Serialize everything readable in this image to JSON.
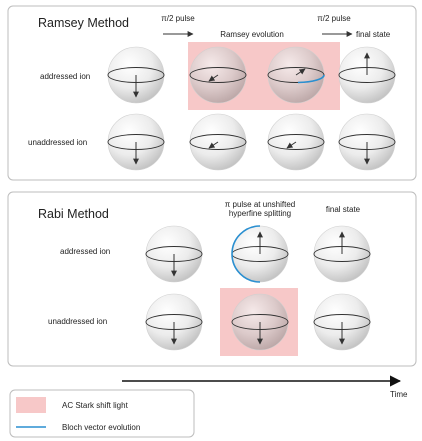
{
  "ramsey": {
    "title": "Ramsey Method",
    "step1_label": "π/2 pulse",
    "evolution_label": "Ramsey evolution",
    "step2_label": "π/2 pulse",
    "final_label": "final state",
    "row_addressed": "addressed ion",
    "row_unaddressed": "unaddressed ion"
  },
  "rabi": {
    "title": "Rabi Method",
    "pulse_label_line1": "π pulse at unshifted",
    "pulse_label_line2": "hyperfine splitting",
    "final_label": "final state",
    "row_addressed": "addressed ion",
    "row_unaddressed": "unaddressed ion"
  },
  "time_label": "Time",
  "legend": {
    "stark_label": "AC Stark shift light",
    "bloch_label": "Bloch vector evolution"
  },
  "colors": {
    "stark_fill": "#f7c8c8",
    "bloch_evolution": "#2a8fd0",
    "panel_border": "#bdbdbd"
  }
}
